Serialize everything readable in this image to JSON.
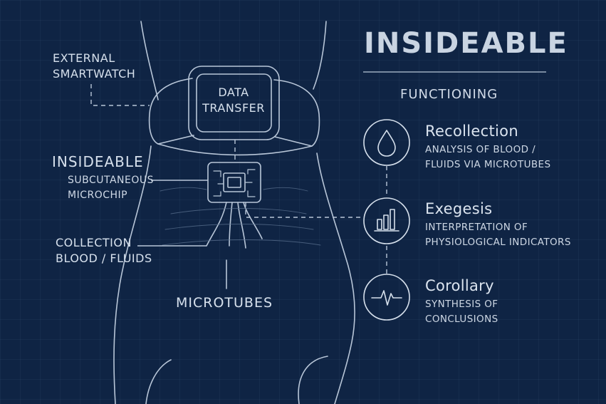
{
  "title": "INSIDEABLE",
  "subtitle": "FUNCTIONING",
  "watch_label": [
    "EXTERNAL",
    "SMARTWATCH"
  ],
  "watch_screen": [
    "DATA",
    "TRANSFER"
  ],
  "chip_label": {
    "name": "INSIDEABLE",
    "desc": [
      "SUBCUTANEOUS",
      "MICROCHIP"
    ]
  },
  "collection_label": [
    "COLLECTION",
    "BLOOD / FLUIDS"
  ],
  "microtubes_label": "MICROTUBES",
  "stages": [
    {
      "name": "Recollection",
      "desc": [
        "ANALYSIS OF BLOOD /",
        "FLUIDS VIA MICROTUBES"
      ],
      "icon": "drop-icon"
    },
    {
      "name": "Exegesis",
      "desc": [
        "INTERPRETATION OF",
        "PHYSIOLOGICAL INDICATORS"
      ],
      "icon": "bar-chart-icon"
    },
    {
      "name": "Corollary",
      "desc": [
        "SYNTHESIS OF",
        "CONCLUSIONS"
      ],
      "icon": "pulse-icon"
    }
  ],
  "colors": {
    "background": "#0f2444",
    "line": "#b8c6d8",
    "text": "#dde6f0"
  }
}
